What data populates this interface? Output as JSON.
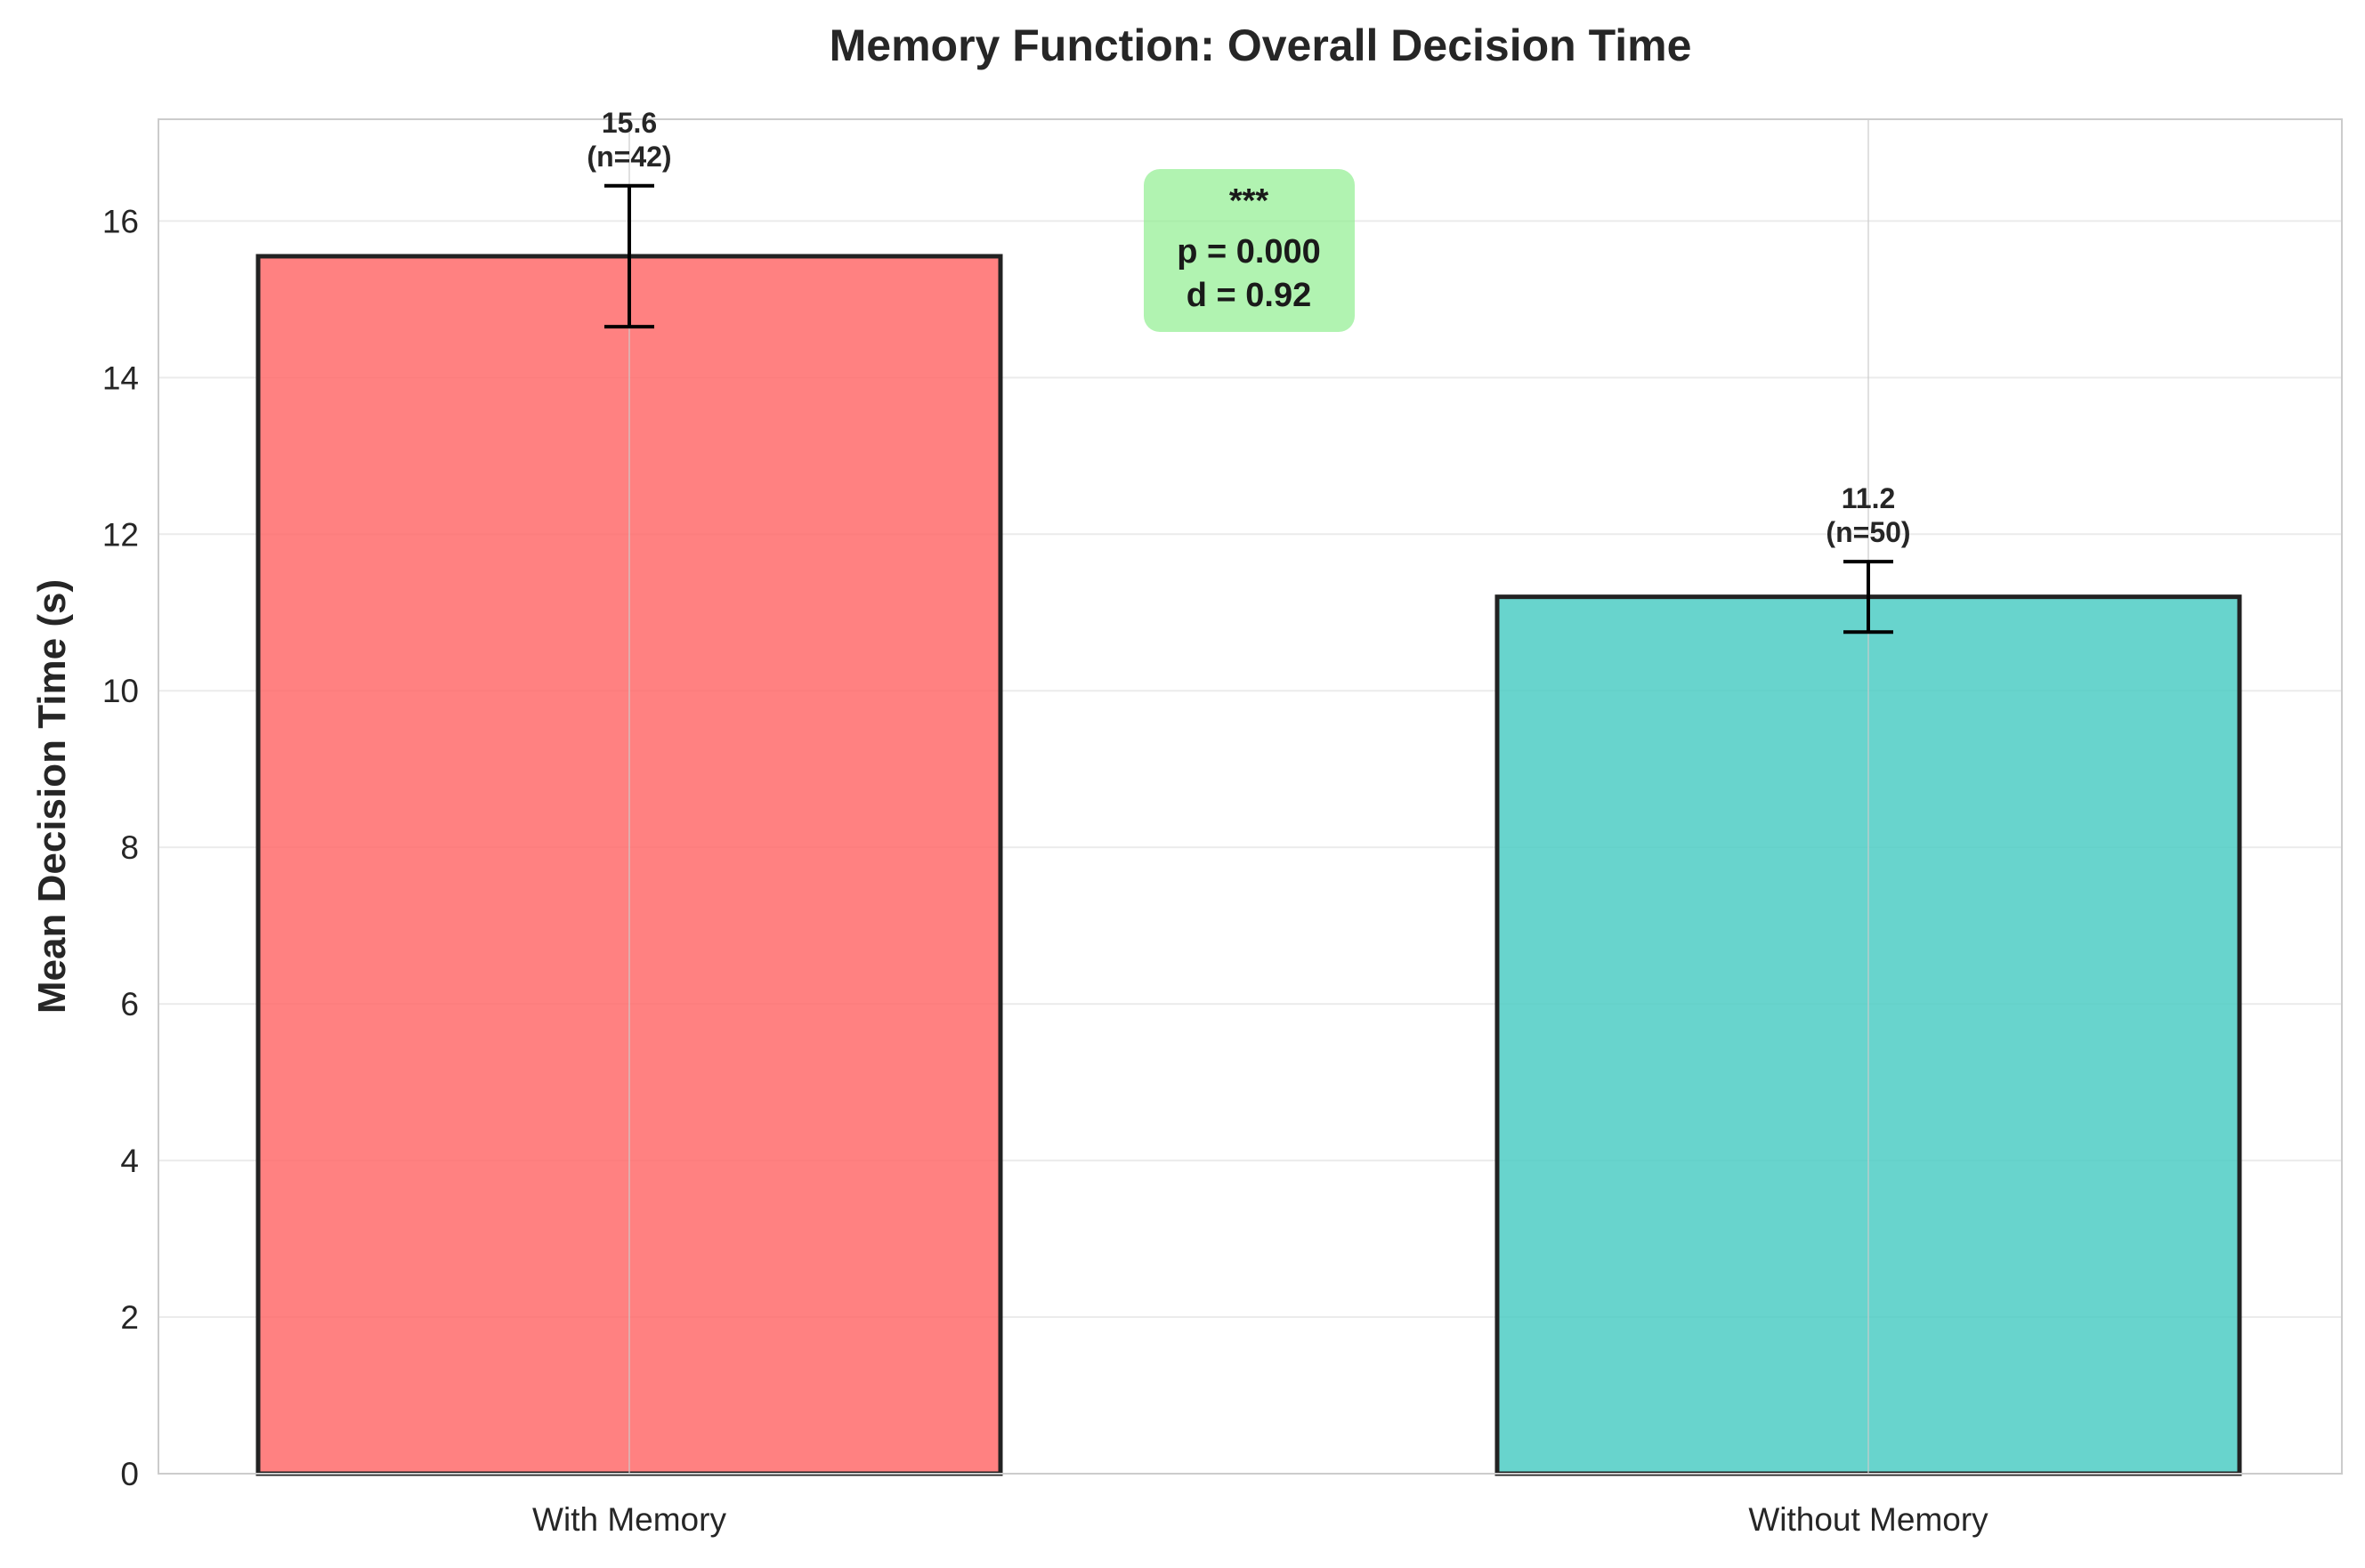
{
  "chart_data": {
    "type": "bar",
    "title": "Memory Function: Overall Decision Time",
    "xlabel": "",
    "ylabel": "Mean Decision Time (s)",
    "ylim": [
      0,
      17.3
    ],
    "yticks": [
      "0",
      "2",
      "4",
      "6",
      "8",
      "10",
      "12",
      "14",
      "16"
    ],
    "categories": [
      "With Memory",
      "Without Memory"
    ],
    "values": [
      15.55,
      11.2
    ],
    "error": [
      0.9,
      0.45
    ],
    "value_labels": [
      "15.6",
      "11.2"
    ],
    "n_labels": [
      "(n=42)",
      "(n=50)"
    ],
    "colors": [
      "#ff6b6b",
      "#4ecdc4"
    ],
    "bar_alpha": 0.85,
    "grid": true,
    "annotation": {
      "lines": [
        "***",
        "p = 0.000",
        "d = 0.92"
      ],
      "box_color": "#90ee90"
    }
  }
}
